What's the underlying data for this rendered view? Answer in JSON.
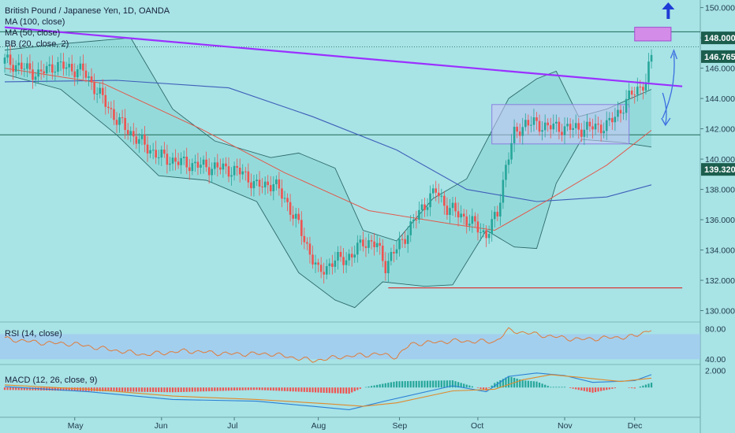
{
  "header": {
    "symbol_line": "British Pound / Japanese Yen, 1D, OANDA",
    "indicators": [
      "MA (100, close)",
      "MA (50, close)",
      "BB (20, close, 2)"
    ]
  },
  "rsi_pane": {
    "label": "RSI (14, close)",
    "ticks": [
      "80.00",
      "40.00"
    ]
  },
  "macd_pane": {
    "label": "MACD (12, 26, close, 9)",
    "ticks": [
      "2.000"
    ]
  },
  "colors": {
    "background": "#a8e3e6",
    "up_candle": "#26a69a",
    "down_candle": "#ef5350",
    "trendline": "#9b30ff",
    "ma100": "#3e5fb8",
    "ma50": "#e05a4b",
    "bollinger": "#2e6b6b",
    "rsi_line": "#e07b39",
    "rsi_band": "#9fc4f2",
    "macd_line": "#2a7fd6",
    "signal_line": "#e08a2a",
    "arrow": "#1f3bd6"
  },
  "chart_data": [
    {
      "type": "candlestick",
      "title": "British Pound / Japanese Yen, 1D, OANDA",
      "x_ticks": [
        "May",
        "Jun",
        "Jul",
        "Aug",
        "Sep",
        "Oct",
        "Nov",
        "Dec"
      ],
      "y_ticks": [
        "150.000",
        "148.000",
        "146.000",
        "144.000",
        "142.000",
        "140.000",
        "138.000",
        "136.000",
        "134.000",
        "132.000",
        "130.000"
      ],
      "ylim": [
        129.3,
        150.5
      ],
      "price_labels": [
        {
          "text": "148.000",
          "value": 148.0,
          "color": "#1c5e4e"
        },
        {
          "text": "146.765",
          "value": 146.765,
          "color": "#1c5e4e"
        },
        {
          "text": "139.320",
          "value": 139.32,
          "color": "#1c5e4e"
        }
      ],
      "close_anchors": [
        [
          0,
          146.5
        ],
        [
          12,
          145.6
        ],
        [
          18,
          146.2
        ],
        [
          28,
          145.8
        ],
        [
          33,
          144.5
        ],
        [
          40,
          142.6
        ],
        [
          48,
          141.2
        ],
        [
          55,
          140.2
        ],
        [
          62,
          139.8
        ],
        [
          72,
          139.5
        ],
        [
          78,
          139.4
        ],
        [
          85,
          139.1
        ],
        [
          90,
          138.2
        ],
        [
          96,
          138.4
        ],
        [
          100,
          137.4
        ],
        [
          105,
          135.6
        ],
        [
          112,
          132.5
        ],
        [
          118,
          133.3
        ],
        [
          124,
          133.6
        ],
        [
          128,
          134.6
        ],
        [
          133,
          134.3
        ],
        [
          136,
          133.0
        ],
        [
          140,
          134.1
        ],
        [
          144,
          135.2
        ],
        [
          149,
          136.8
        ],
        [
          154,
          137.9
        ],
        [
          158,
          136.8
        ],
        [
          163,
          136.3
        ],
        [
          168,
          135.6
        ],
        [
          172,
          135.0
        ],
        [
          176,
          136.4
        ],
        [
          179,
          139.6
        ],
        [
          182,
          141.6
        ],
        [
          186,
          142.4
        ],
        [
          196,
          142.1
        ],
        [
          205,
          142.0
        ],
        [
          215,
          142.2
        ],
        [
          218,
          142.8
        ],
        [
          221,
          143.5
        ],
        [
          224,
          144.3
        ],
        [
          227,
          144.8
        ],
        [
          229,
          145.1
        ],
        [
          231,
          146.7
        ]
      ],
      "series": [
        {
          "name": "MA (100, close)",
          "points": [
            [
              0,
              145.1
            ],
            [
              40,
              145.2
            ],
            [
              80,
              144.7
            ],
            [
              110,
              142.8
            ],
            [
              140,
              140.6
            ],
            [
              165,
              138.0
            ],
            [
              190,
              137.2
            ],
            [
              215,
              137.5
            ],
            [
              231,
              138.3
            ]
          ]
        },
        {
          "name": "MA (50, close)",
          "points": [
            [
              0,
              146.0
            ],
            [
              35,
              145.0
            ],
            [
              70,
              142.0
            ],
            [
              100,
              139.1
            ],
            [
              130,
              136.6
            ],
            [
              160,
              135.7
            ],
            [
              175,
              135.3
            ],
            [
              195,
              137.4
            ],
            [
              215,
              139.6
            ],
            [
              231,
              141.9
            ]
          ]
        },
        {
          "name": "BB (20, close, 2) upper",
          "points": [
            [
              0,
              147.2
            ],
            [
              20,
              147.6
            ],
            [
              45,
              148.0
            ],
            [
              60,
              143.3
            ],
            [
              75,
              141.2
            ],
            [
              95,
              140.1
            ],
            [
              105,
              140.4
            ],
            [
              118,
              139.4
            ],
            [
              128,
              135.3
            ],
            [
              140,
              134.6
            ],
            [
              153,
              137.4
            ],
            [
              165,
              138.7
            ],
            [
              180,
              144.0
            ],
            [
              190,
              145.3
            ],
            [
              197,
              145.8
            ],
            [
              205,
              142.8
            ],
            [
              215,
              143.3
            ],
            [
              231,
              144.6
            ]
          ]
        },
        {
          "name": "BB (20, close, 2) lower",
          "points": [
            [
              0,
              145.6
            ],
            [
              20,
              144.6
            ],
            [
              40,
              141.6
            ],
            [
              55,
              138.9
            ],
            [
              72,
              138.6
            ],
            [
              90,
              137.2
            ],
            [
              105,
              132.5
            ],
            [
              118,
              130.7
            ],
            [
              125,
              130.2
            ],
            [
              135,
              131.9
            ],
            [
              150,
              131.6
            ],
            [
              160,
              131.7
            ],
            [
              172,
              135.3
            ],
            [
              182,
              134.2
            ],
            [
              190,
              134.1
            ],
            [
              197,
              138.4
            ],
            [
              206,
              141.3
            ],
            [
              220,
              141.1
            ],
            [
              231,
              140.8
            ]
          ]
        }
      ],
      "annotations": {
        "trendline": [
          [
            0,
            148.7
          ],
          [
            242,
            144.8
          ]
        ],
        "horizontal_lines": [
          148.4,
          147.4,
          141.6
        ],
        "support_segment": {
          "from": 137,
          "to": 242,
          "value": 131.5
        },
        "rectangle_box": {
          "x0": 174,
          "x1": 223,
          "y0": 141.0,
          "y1": 143.6
        },
        "target_box": {
          "x0": 225,
          "x1": 238,
          "y0": 147.8,
          "y1": 148.7
        }
      }
    },
    {
      "type": "line",
      "title": "RSI (14, close)",
      "ylim": [
        34,
        88
      ],
      "band": [
        40,
        73
      ],
      "series": [
        {
          "name": "RSI (14, close)",
          "points": [
            [
              0,
              67
            ],
            [
              12,
              62
            ],
            [
              25,
              60
            ],
            [
              35,
              54
            ],
            [
              50,
              46
            ],
            [
              65,
              51
            ],
            [
              80,
              47
            ],
            [
              95,
              47
            ],
            [
              110,
              38
            ],
            [
              120,
              43
            ],
            [
              133,
              47
            ],
            [
              140,
              43
            ],
            [
              145,
              60
            ],
            [
              160,
              64
            ],
            [
              175,
              63
            ],
            [
              180,
              78
            ],
            [
              195,
              70
            ],
            [
              205,
              66
            ],
            [
              215,
              68
            ],
            [
              225,
              70
            ],
            [
              231,
              80
            ]
          ]
        }
      ]
    },
    {
      "type": "bar",
      "title": "MACD (12, 26, close, 9)",
      "ylim": [
        -3.3,
        2.6
      ],
      "series": [
        {
          "name": "MACD (12, 26, close, 9)",
          "points": [
            [
              0,
              0.1
            ],
            [
              30,
              -0.5
            ],
            [
              60,
              -1.4
            ],
            [
              90,
              -1.6
            ],
            [
              110,
              -2.2
            ],
            [
              123,
              -2.6
            ],
            [
              137,
              -1.5
            ],
            [
              160,
              0.2
            ],
            [
              172,
              -0.5
            ],
            [
              180,
              1.3
            ],
            [
              190,
              1.7
            ],
            [
              200,
              1.4
            ],
            [
              210,
              0.6
            ],
            [
              225,
              0.8
            ],
            [
              231,
              1.5
            ]
          ]
        },
        {
          "name": "signal",
          "points": [
            [
              0,
              0.3
            ],
            [
              30,
              -0.2
            ],
            [
              60,
              -1.0
            ],
            [
              90,
              -1.4
            ],
            [
              115,
              -1.9
            ],
            [
              128,
              -2.2
            ],
            [
              140,
              -1.8
            ],
            [
              160,
              -0.4
            ],
            [
              175,
              -0.2
            ],
            [
              185,
              0.9
            ],
            [
              195,
              1.5
            ],
            [
              205,
              1.2
            ],
            [
              220,
              0.7
            ],
            [
              231,
              1.1
            ]
          ]
        }
      ]
    }
  ]
}
